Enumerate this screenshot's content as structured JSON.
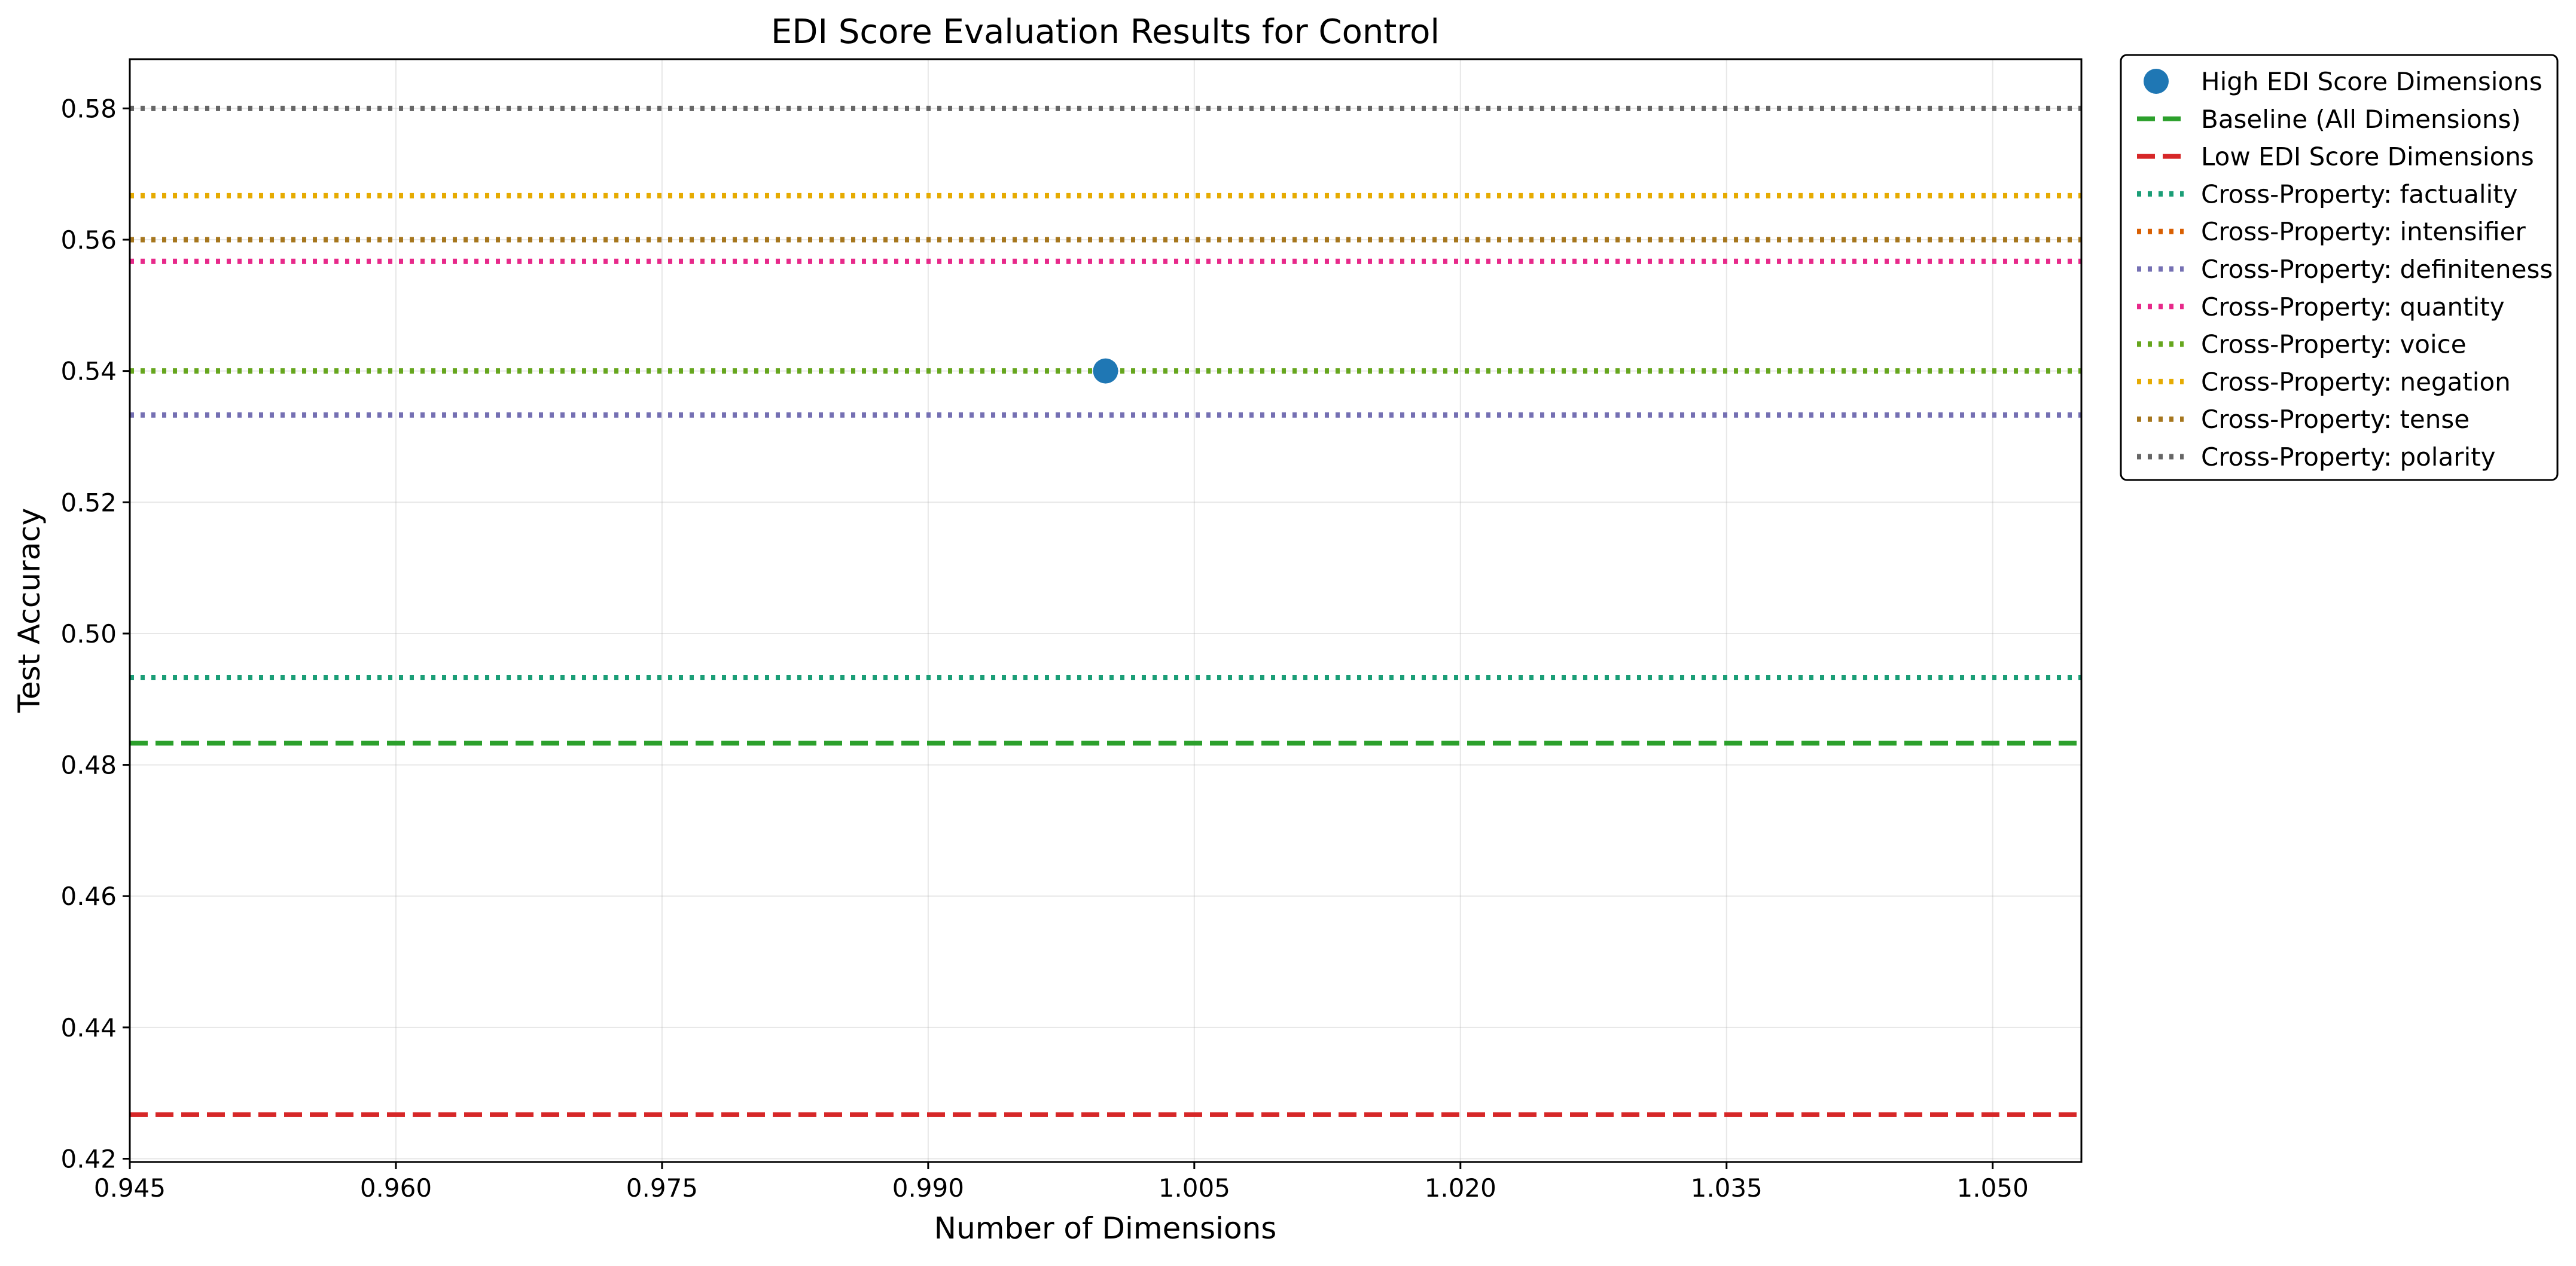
{
  "chart_data": {
    "type": "line",
    "title": "EDI Score Evaluation Results for Control",
    "xlabel": "Number of Dimensions",
    "ylabel": "Test Accuracy",
    "xlim": [
      0.945,
      1.055
    ],
    "ylim": [
      0.4195,
      0.5875
    ],
    "x_ticks": [
      "0.945",
      "0.960",
      "0.975",
      "0.990",
      "1.005",
      "1.020",
      "1.035",
      "1.050"
    ],
    "y_ticks": [
      "0.42",
      "0.44",
      "0.46",
      "0.48",
      "0.50",
      "0.52",
      "0.54",
      "0.56",
      "0.58"
    ],
    "grid": true,
    "legend_position": "outside right, top",
    "series": [
      {
        "name": "High EDI Score Dimensions",
        "kind": "scatter",
        "color": "#1f77b4",
        "points": [
          {
            "x": 1.0,
            "y": 0.54
          }
        ]
      },
      {
        "name": "Baseline (All Dimensions)",
        "kind": "hline",
        "style": "dashed",
        "color": "#2ca02c",
        "y": 0.4833
      },
      {
        "name": "Low EDI Score Dimensions",
        "kind": "hline",
        "style": "dashed",
        "color": "#d62728",
        "y": 0.4267
      },
      {
        "name": "Cross-Property: factuality",
        "kind": "hline",
        "style": "dotted",
        "color": "#1b9e77",
        "y": 0.4933
      },
      {
        "name": "Cross-Property: intensifier",
        "kind": "hline",
        "style": "dotted",
        "color": "#d95f02",
        "y": 0.56
      },
      {
        "name": "Cross-Property: definiteness",
        "kind": "hline",
        "style": "dotted",
        "color": "#7570b3",
        "y": 0.5333
      },
      {
        "name": "Cross-Property: quantity",
        "kind": "hline",
        "style": "dotted",
        "color": "#e7298a",
        "y": 0.5567
      },
      {
        "name": "Cross-Property: voice",
        "kind": "hline",
        "style": "dotted",
        "color": "#66a61e",
        "y": 0.54
      },
      {
        "name": "Cross-Property: negation",
        "kind": "hline",
        "style": "dotted",
        "color": "#e6ab02",
        "y": 0.5667
      },
      {
        "name": "Cross-Property: tense",
        "kind": "hline",
        "style": "dotted",
        "color": "#a6761d",
        "y": 0.56
      },
      {
        "name": "Cross-Property: polarity",
        "kind": "hline",
        "style": "dotted",
        "color": "#666666",
        "y": 0.58
      }
    ]
  }
}
